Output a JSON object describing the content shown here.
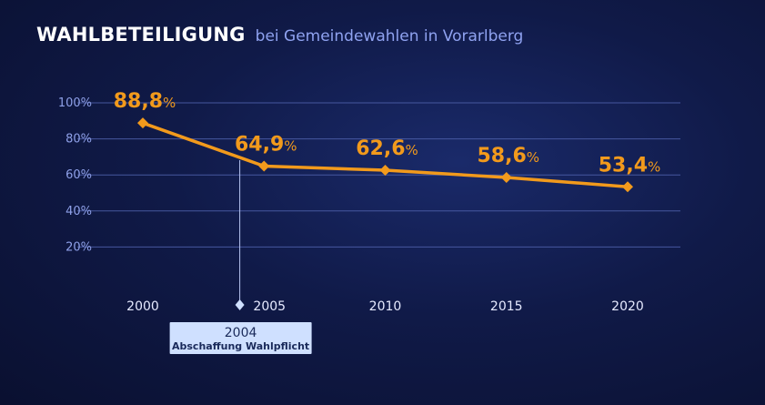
{
  "header": {
    "title": "WAHLBETEILIGUNG",
    "subtitle": "bei Gemeindewahlen in Vorarlberg"
  },
  "colors": {
    "line": "#f29a1c",
    "grid": "#4c5ea8",
    "axis_text": "#8ea0e8",
    "x_text": "#e6eaff",
    "annotation_bg": "#cfe0ff",
    "annotation_text": "#1a2a5a"
  },
  "chart_data": {
    "type": "line",
    "x": [
      2000,
      2005,
      2010,
      2015,
      2020
    ],
    "categories": [
      "2000",
      "2005",
      "2010",
      "2015",
      "2020"
    ],
    "values": [
      88.8,
      64.9,
      62.6,
      58.6,
      53.4
    ],
    "data_labels": [
      {
        "num": "88,8",
        "unit": "%"
      },
      {
        "num": "64,9",
        "unit": "%"
      },
      {
        "num": "62,6",
        "unit": "%"
      },
      {
        "num": "58,6",
        "unit": "%"
      },
      {
        "num": "53,4",
        "unit": "%"
      }
    ],
    "y_ticks": [
      {
        "value": 100,
        "label": "100%"
      },
      {
        "value": 80,
        "label": "80%"
      },
      {
        "value": 60,
        "label": "60%"
      },
      {
        "value": 40,
        "label": "40%"
      },
      {
        "value": 20,
        "label": "20%"
      }
    ],
    "ylim": [
      0,
      100
    ],
    "grid": true,
    "annotation": {
      "x": 2004,
      "year_label": "2004",
      "text": "Abschaffung Wahlpflicht"
    }
  }
}
